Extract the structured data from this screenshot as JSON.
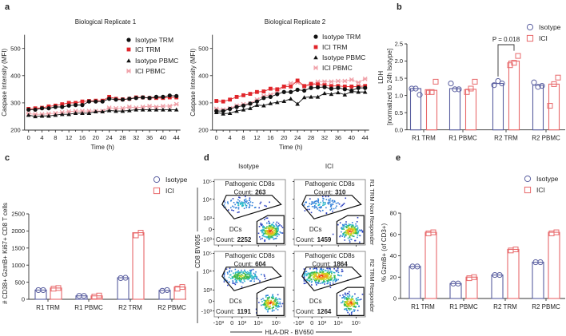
{
  "panel_labels": {
    "a": "a",
    "b": "b",
    "c": "c",
    "d": "d",
    "e": "e"
  },
  "chart_data": [
    {
      "panel": "a",
      "type": "line",
      "title": "Biological Replicate 1",
      "xlabel": "Time (h)",
      "ylabel": "Caspase Intensity (MFI)",
      "xlim": [
        0,
        44
      ],
      "ylim": [
        200,
        550
      ],
      "xticks": [
        "0",
        "4",
        "8",
        "12",
        "16",
        "20",
        "24",
        "28",
        "32",
        "36",
        "40",
        "44"
      ],
      "yticks": [
        "200",
        "300",
        "400",
        "500"
      ],
      "legend": "top-right",
      "x": [
        0,
        2,
        4,
        6,
        8,
        10,
        12,
        14,
        16,
        18,
        20,
        22,
        24,
        26,
        28,
        30,
        32,
        34,
        36,
        38,
        40,
        42,
        44
      ],
      "series": [
        {
          "name": "Isotype TRM",
          "marker": "circle",
          "color": "#111111",
          "values": [
            275,
            275,
            280,
            280,
            285,
            285,
            290,
            292,
            292,
            305,
            305,
            305,
            315,
            312,
            312,
            315,
            318,
            320,
            318,
            322,
            322,
            327,
            325
          ]
        },
        {
          "name": "ICI TRM",
          "marker": "square",
          "color": "#e0252a",
          "values": [
            278,
            280,
            282,
            287,
            290,
            295,
            300,
            300,
            305,
            307,
            308,
            308,
            322,
            315,
            313,
            315,
            320,
            320,
            318,
            318,
            318,
            320,
            320
          ]
        },
        {
          "name": "Isotype PBMC",
          "marker": "triangle",
          "color": "#111111",
          "values": [
            255,
            250,
            252,
            252,
            255,
            258,
            258,
            262,
            262,
            262,
            268,
            268,
            272,
            270,
            270,
            272,
            275,
            275,
            275,
            275,
            275,
            275,
            275
          ]
        },
        {
          "name": "ICI PBMC",
          "marker": "cross",
          "color": "#f0a0a8",
          "values": [
            260,
            258,
            258,
            260,
            262,
            265,
            268,
            270,
            270,
            270,
            270,
            270,
            282,
            280,
            280,
            285,
            282,
            285,
            288,
            285,
            288,
            288,
            295
          ]
        }
      ]
    },
    {
      "panel": "a",
      "type": "line",
      "title": "Biological Replicate 2",
      "xlabel": "Time (h)",
      "ylabel": "Caspase Intensity (MFI)",
      "xlim": [
        0,
        44
      ],
      "ylim": [
        200,
        550
      ],
      "xticks": [
        "0",
        "4",
        "8",
        "12",
        "16",
        "20",
        "24",
        "28",
        "32",
        "36",
        "40",
        "44"
      ],
      "yticks": [
        "200",
        "300",
        "400",
        "500"
      ],
      "legend": "top-right",
      "x": [
        0,
        2,
        4,
        6,
        8,
        10,
        12,
        14,
        16,
        18,
        20,
        22,
        24,
        26,
        28,
        30,
        32,
        34,
        36,
        38,
        40,
        42,
        44
      ],
      "series": [
        {
          "name": "Isotype TRM",
          "marker": "circle",
          "color": "#111111",
          "values": [
            270,
            270,
            278,
            285,
            290,
            297,
            305,
            318,
            322,
            332,
            340,
            340,
            348,
            345,
            355,
            357,
            358,
            352,
            355,
            350,
            345,
            355,
            355
          ]
        },
        {
          "name": "ICI TRM",
          "marker": "square",
          "color": "#e0252a",
          "values": [
            307,
            305,
            312,
            322,
            328,
            333,
            340,
            342,
            352,
            350,
            360,
            360,
            382,
            362,
            370,
            368,
            365,
            362,
            362,
            360,
            360,
            360,
            362
          ]
        },
        {
          "name": "Isotype PBMC",
          "marker": "triangle",
          "color": "#111111",
          "values": [
            265,
            260,
            262,
            270,
            275,
            280,
            292,
            290,
            298,
            302,
            306,
            315,
            296,
            320,
            322,
            322,
            335,
            332,
            338,
            330,
            342,
            340,
            340
          ]
        },
        {
          "name": "ICI PBMC",
          "marker": "cross",
          "color": "#f0a0a8",
          "values": [
            278,
            275,
            280,
            290,
            295,
            298,
            312,
            325,
            330,
            340,
            360,
            372,
            375,
            360,
            365,
            378,
            378,
            378,
            380,
            380,
            385,
            375,
            388
          ]
        }
      ]
    },
    {
      "panel": "b",
      "type": "bar",
      "ylabel": "LDH",
      "ylabel2": "[normalized to 24h Isotype]",
      "ylim": [
        0,
        2.5
      ],
      "yticks": [
        "0.0",
        "0.5",
        "1.0",
        "1.5",
        "2.0",
        "2.5"
      ],
      "legend": "top-right",
      "categories": [
        "R1 TRM",
        "R1 PBMC",
        "R2 TRM",
        "R2 PBMC"
      ],
      "series": [
        {
          "name": "Isotype",
          "marker": "circle",
          "color": "#5a5fa0",
          "values": [
            1.2,
            1.2,
            1.35,
            1.3
          ],
          "points": [
            [
              1.2,
              1.2,
              1.02
            ],
            [
              1.35,
              1.18,
              1.18
            ],
            [
              1.3,
              1.42,
              1.35
            ],
            [
              1.38,
              1.25,
              1.28
            ]
          ]
        },
        {
          "name": "ICI",
          "marker": "square",
          "color": "#e8696b",
          "values": [
            1.15,
            1.18,
            2.0,
            1.33
          ],
          "points": [
            [
              1.1,
              1.1,
              1.4
            ],
            [
              1.1,
              1.2,
              1.4
            ],
            [
              1.88,
              1.95,
              2.15
            ],
            [
              0.7,
              1.33,
              1.52
            ]
          ]
        }
      ],
      "annotation": {
        "text": "P = 0.018",
        "category": "R2 TRM"
      }
    },
    {
      "panel": "c",
      "type": "bar",
      "ylabel": "# CD38+ GzmB+ Ki67+ CD8 T cells",
      "ylim": [
        0,
        2500
      ],
      "yticks": [
        "0",
        "500",
        "1000",
        "1500",
        "2000",
        "2500"
      ],
      "legend": "top-right",
      "categories": [
        "R1 TRM",
        "R1 PBMC",
        "R2 TRM",
        "R2 PBMC"
      ],
      "series": [
        {
          "name": "Isotype",
          "marker": "circle",
          "color": "#5a5fa0",
          "values": [
            270,
            100,
            630,
            260
          ],
          "points": [
            [
              270,
              270
            ],
            [
              100,
              100
            ],
            [
              620,
              630
            ],
            [
              250,
              270
            ]
          ]
        },
        {
          "name": "ICI",
          "marker": "square",
          "color": "#e8696b",
          "values": [
            330,
            100,
            1950,
            360
          ],
          "points": [
            [
              310,
              330
            ],
            [
              80,
              110
            ],
            [
              1870,
              1950
            ],
            [
              310,
              360
            ]
          ]
        }
      ]
    },
    {
      "panel": "d",
      "type": "scatter",
      "column_titles": [
        "Isotype",
        "ICI"
      ],
      "row_titles": [
        "R1 TRM Non Responder",
        "R2 TRM Responder"
      ],
      "xlabel": "HLA-DR - BV650",
      "ylabel": "CD8 BV805",
      "xticks": [
        "-10³",
        "0",
        "10³",
        "10⁴",
        "10⁵"
      ],
      "yticks": [
        "10⁵",
        "10⁴",
        "10³",
        "0",
        "-10³"
      ],
      "count_prefix": "Count:",
      "gates": [
        "Pathogenic CD8s",
        "DCs"
      ],
      "plots": [
        {
          "column": "Isotype",
          "row": "R1 TRM Non Responder",
          "pathogenic_count": "263",
          "dc_count": "2252"
        },
        {
          "column": "ICI",
          "row": "R1 TRM Non Responder",
          "pathogenic_count": "310",
          "dc_count": "1459"
        },
        {
          "column": "Isotype",
          "row": "R2 TRM Responder",
          "pathogenic_count": "604",
          "dc_count": "1191"
        },
        {
          "column": "ICI",
          "row": "R2 TRM Responder",
          "pathogenic_count": "1864",
          "dc_count": "1264"
        }
      ]
    },
    {
      "panel": "e",
      "type": "bar",
      "ylabel": "% GzmB+ (of CD3+)",
      "ylim": [
        0,
        80
      ],
      "yticks": [
        "0",
        "20",
        "40",
        "60",
        "80"
      ],
      "legend": "top-right",
      "categories": [
        "R1 TRM",
        "R1 PBMC",
        "R2 TRM",
        "R2 PBMC"
      ],
      "series": [
        {
          "name": "Isotype",
          "marker": "circle",
          "color": "#5a5fa0",
          "values": [
            30,
            14,
            22,
            34
          ],
          "points": [
            [
              30,
              30
            ],
            [
              14,
              14
            ],
            [
              22,
              22
            ],
            [
              34,
              34
            ]
          ]
        },
        {
          "name": "ICI",
          "marker": "square",
          "color": "#e8696b",
          "values": [
            62,
            20,
            46,
            62
          ],
          "points": [
            [
              61,
              62
            ],
            [
              19,
              20
            ],
            [
              45,
              46
            ],
            [
              61,
              62
            ]
          ]
        }
      ]
    }
  ]
}
